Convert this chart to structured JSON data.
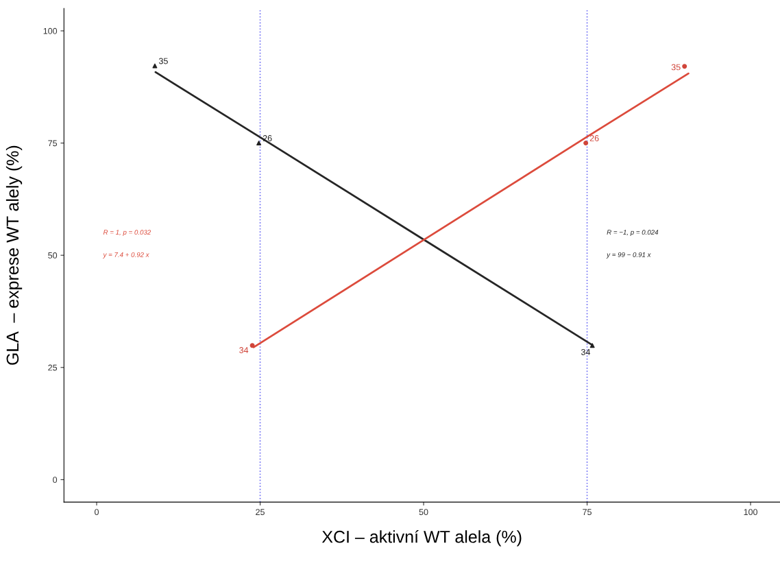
{
  "chart_data": {
    "type": "scatter",
    "xlabel": "XCI – aktivní WT alela (%)",
    "ylabel": "GLA  – exprese WT alely (%)",
    "xlim": [
      -5,
      104.5
    ],
    "ylim": [
      -5,
      105
    ],
    "xticks": [
      0,
      25,
      50,
      75,
      100
    ],
    "yticks": [
      0,
      25,
      50,
      75,
      100
    ],
    "grid": false,
    "legend": false,
    "series": [
      {
        "marker": "triangle",
        "color": "#222222",
        "x": [
          8.9,
          24.8,
          75.8
        ],
        "values": [
          92.2,
          75.0,
          29.9
        ]
      },
      {
        "marker": "circle",
        "color": "#d0453a",
        "x": [
          23.8,
          74.8,
          89.9
        ],
        "values": [
          29.9,
          75.0,
          92.1
        ]
      },
      {
        "type": "line",
        "color": "#262626",
        "x": [
          9,
          25,
          50,
          75.8
        ],
        "values": [
          90.8,
          76.3,
          53.5,
          30.0
        ]
      },
      {
        "type": "line",
        "color": "#dc4b3c",
        "x": [
          24,
          50,
          75,
          90.5
        ],
        "values": [
          29.5,
          53.4,
          76.4,
          90.5
        ]
      }
    ],
    "ref_lines": [
      {
        "axis": "x",
        "value": 25,
        "color": "#6f6ff5",
        "line_style": "dotted"
      },
      {
        "axis": "x",
        "value": 75,
        "color": "#6f6ff5",
        "line_style": "dotted"
      }
    ],
    "annotations": [
      "R = 1, p = 0.032",
      "y = 7.4 + 0.92 x",
      "R = −1, p = 0.024",
      "y = 99 − 0.91 x",
      {
        "text": "35",
        "x": 8.9,
        "y": 92.2
      },
      {
        "text": "26",
        "x": 24.8,
        "y": 75.0
      },
      {
        "text": "34",
        "x": 75.8,
        "y": 29.9
      },
      {
        "text": "34",
        "x": 23.8,
        "y": 29.9
      },
      {
        "text": "26",
        "x": 74.8,
        "y": 75.0
      },
      {
        "text": "35",
        "x": 89.9,
        "y": 92.1
      }
    ]
  }
}
